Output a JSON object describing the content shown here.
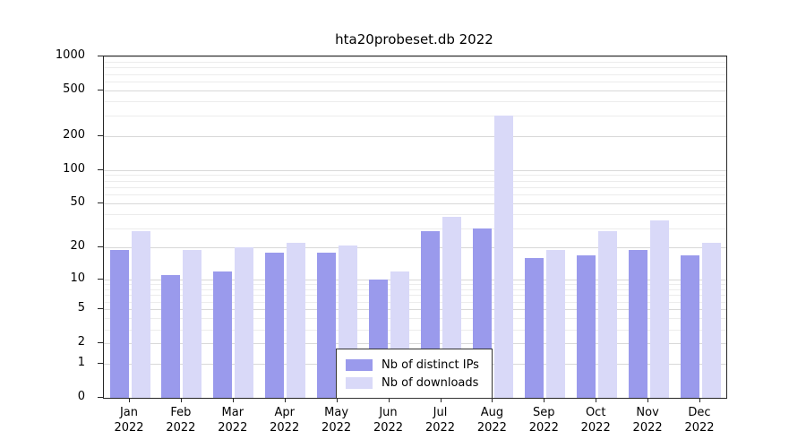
{
  "title": "hta20probeset.db 2022",
  "chart_data": {
    "type": "bar",
    "title": "hta20probeset.db 2022",
    "y_scale": "log1p",
    "ylim": [
      0,
      1000
    ],
    "grid": true,
    "legend_position": "bottom-center-inside",
    "categories": [
      "Jan",
      "Feb",
      "Mar",
      "Apr",
      "May",
      "Jun",
      "Jul",
      "Aug",
      "Sep",
      "Oct",
      "Nov",
      "Dec"
    ],
    "year_label": "2022",
    "y_ticks": [
      0,
      1,
      2,
      5,
      10,
      20,
      50,
      100,
      200,
      500,
      1000
    ],
    "y_minor_gridlines": [
      3,
      4,
      6,
      7,
      8,
      9,
      30,
      40,
      60,
      70,
      80,
      90,
      300,
      400,
      600,
      700,
      800,
      900
    ],
    "series": [
      {
        "name": "Nb of distinct IPs",
        "color": "#9a9aec",
        "values": [
          19,
          11,
          12,
          18,
          18,
          10,
          28,
          30,
          16,
          17,
          19,
          17
        ]
      },
      {
        "name": "Nb of downloads",
        "color": "#d9d9f8",
        "values": [
          28,
          19,
          20,
          22,
          21,
          12,
          38,
          300,
          19,
          28,
          35,
          22
        ]
      }
    ]
  }
}
